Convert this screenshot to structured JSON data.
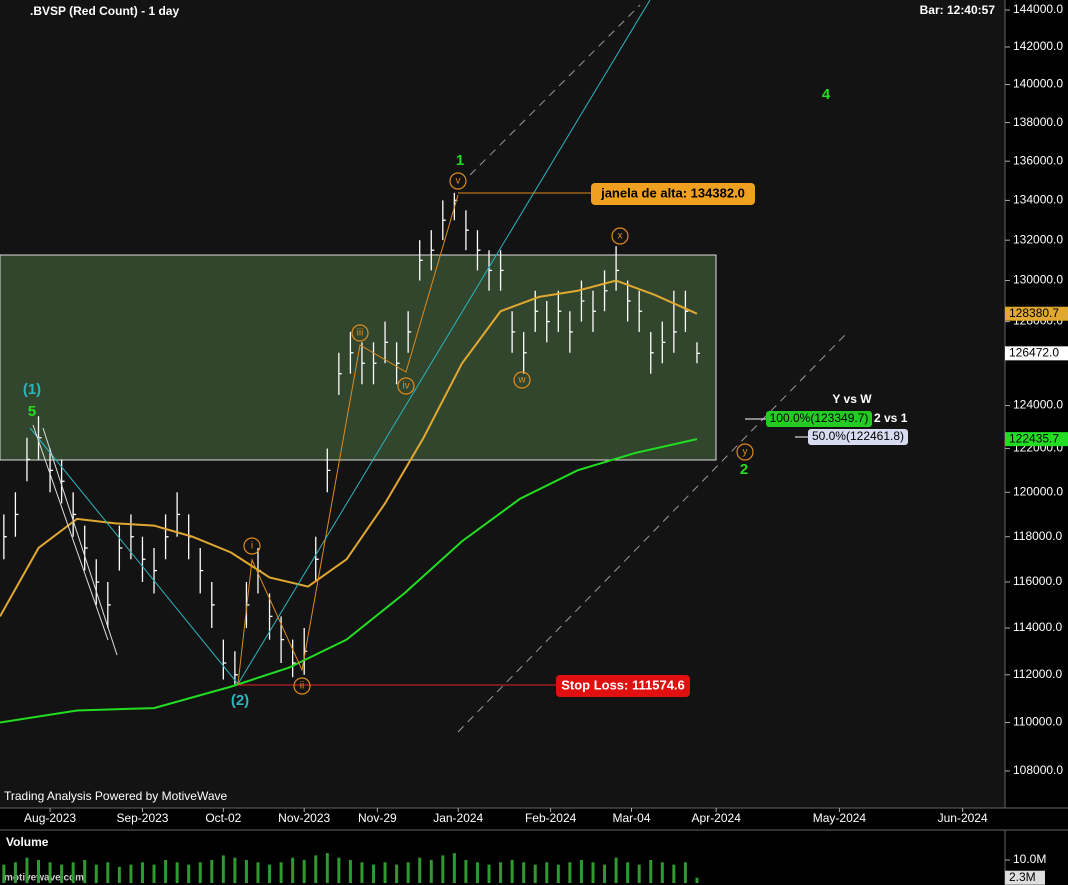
{
  "chart_data": {
    "type": "ohlc",
    "title": ".BVSP (Red Count) - 1 day",
    "bar_time": "Bar: 12:40:57",
    "footer": "Trading Analysis Powered by MotiveWave",
    "watermark": "motivewave.com",
    "log_scale": true,
    "xlim": [
      0,
      261
    ],
    "xticks": [
      {
        "value": 13,
        "label": "Aug-2023"
      },
      {
        "value": 37,
        "label": "Sep-2023"
      },
      {
        "value": 58,
        "label": "Oct-02"
      },
      {
        "value": 79,
        "label": "Nov-2023"
      },
      {
        "value": 98,
        "label": "Nov-29"
      },
      {
        "value": 119,
        "label": "Jan-2024"
      },
      {
        "value": 143,
        "label": "Feb-2024"
      },
      {
        "value": 164,
        "label": "Mar-04"
      },
      {
        "value": 186,
        "label": "Apr-2024"
      },
      {
        "value": 218,
        "label": "May-2024"
      },
      {
        "value": 250,
        "label": "Jun-2024"
      }
    ],
    "ylim": [
      108000,
      144000
    ],
    "yticks": [
      {
        "value": 108000,
        "label": "108000.0"
      },
      {
        "value": 110000,
        "label": "110000.0"
      },
      {
        "value": 112000,
        "label": "112000.0"
      },
      {
        "value": 114000,
        "label": "114000.0"
      },
      {
        "value": 116000,
        "label": "116000.0"
      },
      {
        "value": 118000,
        "label": "118000.0"
      },
      {
        "value": 120000,
        "label": "120000.0"
      },
      {
        "value": 122000,
        "label": "122000.0"
      },
      {
        "value": 124000,
        "label": "124000.0"
      },
      {
        "value": 128000,
        "label": "128000.0"
      },
      {
        "value": 130000,
        "label": "130000.0"
      },
      {
        "value": 132000,
        "label": "132000.0"
      },
      {
        "value": 134000,
        "label": "134000.0"
      },
      {
        "value": 136000,
        "label": "136000.0"
      },
      {
        "value": 138000,
        "label": "138000.0"
      },
      {
        "value": 140000,
        "label": "140000.0"
      },
      {
        "value": 142000,
        "label": "142000.0"
      },
      {
        "value": 144000,
        "label": "144000.0"
      }
    ],
    "bars": {
      "color": "#ffffff",
      "last_label": "126472.0",
      "x": [
        1,
        4,
        7,
        10,
        13,
        16,
        19,
        22,
        25,
        28,
        31,
        34,
        37,
        40,
        43,
        46,
        49,
        52,
        55,
        58,
        61,
        64,
        67,
        70,
        73,
        76,
        79,
        82,
        85,
        88,
        91,
        94,
        97,
        100,
        103,
        106,
        109,
        112,
        115,
        118,
        121,
        124,
        127,
        130,
        133,
        136,
        139,
        142,
        145,
        148,
        151,
        154,
        157,
        160,
        163,
        166,
        169,
        172,
        175,
        178,
        181
      ],
      "high": [
        119000,
        120000,
        122500,
        123500,
        122000,
        121500,
        120000,
        118500,
        117000,
        116000,
        118500,
        119000,
        118000,
        117500,
        119000,
        120000,
        119000,
        117500,
        116000,
        113500,
        113000,
        116000,
        117500,
        115500,
        114500,
        113500,
        114000,
        118000,
        122000,
        126500,
        127500,
        127000,
        127000,
        128000,
        127000,
        128500,
        132000,
        132500,
        134000,
        134382,
        133500,
        132500,
        131500,
        131500,
        128500,
        127500,
        129500,
        129000,
        129500,
        128500,
        130000,
        129500,
        130500,
        131700,
        130000,
        129500,
        127500,
        128000,
        129500,
        129500,
        127000
      ],
      "low": [
        117000,
        118000,
        120500,
        121500,
        120000,
        119500,
        118000,
        116500,
        115000,
        114000,
        116500,
        117000,
        116000,
        115500,
        117000,
        118000,
        117000,
        115500,
        114000,
        111800,
        111600,
        114000,
        115500,
        113500,
        112500,
        111900,
        112000,
        116000,
        120000,
        124500,
        125500,
        125000,
        125000,
        126000,
        125000,
        126500,
        130000,
        130500,
        132000,
        133000,
        131500,
        130500,
        129500,
        129500,
        126500,
        125500,
        127500,
        127000,
        127500,
        126500,
        128000,
        127500,
        128500,
        129500,
        128000,
        127500,
        125500,
        126000,
        126500,
        127500,
        126000
      ],
      "close": [
        118000,
        119000,
        121500,
        122500,
        121000,
        120500,
        119000,
        117500,
        116000,
        115000,
        117500,
        118000,
        117000,
        116500,
        118000,
        119000,
        118000,
        116500,
        115000,
        112500,
        112000,
        115000,
        116500,
        114500,
        113500,
        112500,
        113000,
        117000,
        121000,
        125500,
        126500,
        126000,
        126000,
        127000,
        126000,
        127500,
        131000,
        131500,
        133000,
        134000,
        132500,
        131500,
        130500,
        130500,
        127500,
        126500,
        128500,
        128000,
        128500,
        127500,
        129000,
        128500,
        129500,
        130500,
        129000,
        128500,
        126500,
        127000,
        127500,
        128500,
        126472
      ]
    },
    "series": [
      {
        "color": "#e0a830",
        "last_label": "128380.7",
        "x": [
          0,
          10,
          20,
          30,
          40,
          50,
          60,
          70,
          80,
          90,
          100,
          110,
          120,
          130,
          140,
          150,
          160,
          170,
          181
        ],
        "values": [
          114500,
          117500,
          118800,
          118600,
          118500,
          118000,
          117300,
          116200,
          115800,
          117000,
          119500,
          122500,
          126000,
          128500,
          129200,
          129500,
          130000,
          129300,
          128380.7
        ]
      },
      {
        "color": "#22dd22",
        "last_label": "122435.7",
        "x": [
          0,
          20,
          40,
          60,
          75,
          90,
          105,
          120,
          135,
          150,
          165,
          181
        ],
        "values": [
          110000,
          110500,
          110600,
          111500,
          112300,
          113500,
          115500,
          117800,
          119700,
          121000,
          121800,
          122435.7
        ]
      }
    ],
    "volume": {
      "label": "Volume",
      "color": "#2f9a2f",
      "ylim": [
        0,
        20
      ],
      "yticks": [
        {
          "value": 10,
          "label": "10.0M"
        }
      ],
      "last_label": "2.3M",
      "values": [
        8,
        9,
        11,
        10,
        9,
        8,
        9,
        10,
        8,
        9,
        7,
        8,
        9,
        8,
        10,
        9,
        8,
        9,
        10,
        12,
        11,
        10,
        9,
        8,
        9,
        11,
        10,
        12,
        13,
        11,
        10,
        9,
        8,
        9,
        8,
        9,
        11,
        10,
        12,
        13,
        10,
        9,
        8,
        9,
        10,
        9,
        8,
        9,
        8,
        9,
        10,
        9,
        8,
        11,
        9,
        8,
        10,
        9,
        8,
        9,
        2.3
      ]
    },
    "annotations": {
      "w1": "(1)",
      "w5": "5",
      "w2p": "(2)",
      "i": "i",
      "ii": "ii",
      "iii": "iii",
      "iv": "iv",
      "v": "v",
      "w": "w",
      "x": "x",
      "y": "y",
      "g1": "1",
      "g2": "2",
      "g4": "4",
      "yvsw": "Y vs W",
      "fib100": "100.0%(123349.7)",
      "twovsone": "2 vs 1",
      "fib50": "50.0%(122461.8)",
      "janela": "janela de alta: 134382.0",
      "stop": "Stop Loss: 111574.6"
    }
  }
}
